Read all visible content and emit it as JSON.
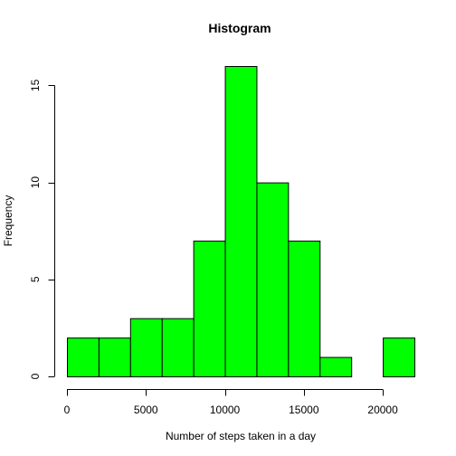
{
  "chart_data": {
    "type": "bar",
    "subtype": "histogram",
    "title": "Histogram",
    "xlabel": "Number of steps taken in a day",
    "ylabel": "Frequency",
    "bin_edges": [
      0,
      2000,
      4000,
      6000,
      8000,
      10000,
      12000,
      14000,
      16000,
      18000,
      20000,
      22000
    ],
    "values": [
      2,
      2,
      3,
      3,
      7,
      16,
      10,
      7,
      1,
      0,
      2
    ],
    "xlim": [
      0,
      22000
    ],
    "ylim": [
      0,
      16
    ],
    "x_ticks": [
      0,
      5000,
      10000,
      15000,
      20000
    ],
    "y_ticks": [
      0,
      5,
      10,
      15
    ],
    "bar_color": "#00ff00",
    "edge_color": "#000000",
    "grid": false,
    "legend": "none"
  }
}
